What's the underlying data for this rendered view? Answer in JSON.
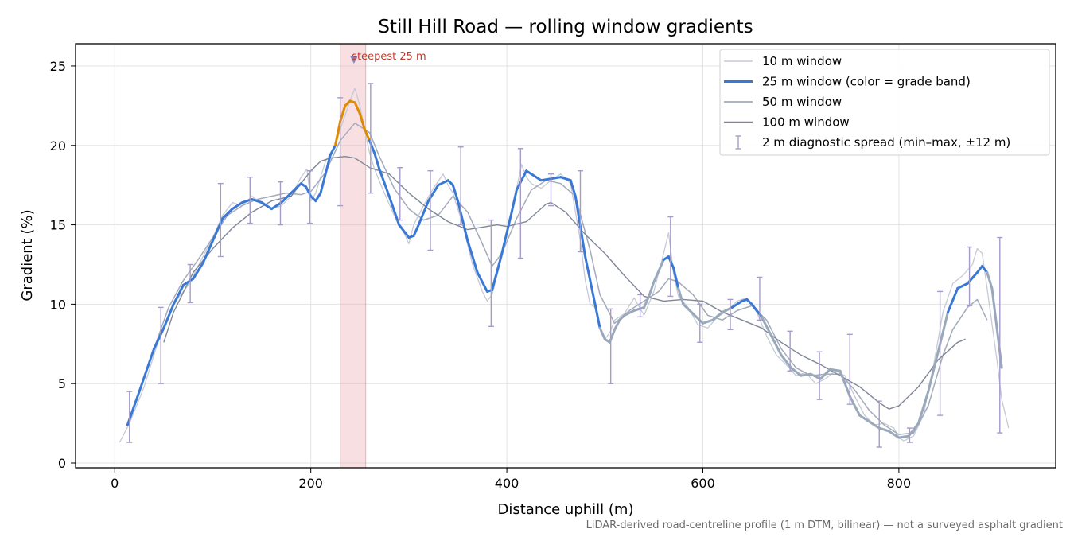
{
  "chart_data": {
    "type": "line",
    "title": "Still Hill Road — rolling window gradients",
    "xlabel": "Distance uphill (m)",
    "ylabel": "Gradient (%)",
    "xlim": [
      -40,
      960
    ],
    "ylim": [
      -0.3,
      26.4
    ],
    "x_ticks": [
      0,
      200,
      400,
      600,
      800
    ],
    "y_ticks": [
      0,
      5,
      10,
      15,
      20,
      25
    ],
    "grid": true,
    "legend_position": "top-right",
    "footnote": "LiDAR-derived road-centreline profile (1 m DTM, bilinear) — not a surveyed asphalt gradient",
    "highlight": {
      "label": "steepest 25 m",
      "x_start": 230,
      "x_end": 256,
      "peak_x": 244,
      "peak_y": 25.3
    },
    "grade_band_threshold": 20,
    "series": [
      {
        "name": "10 m window",
        "kind": "line",
        "color": "#c5cad6",
        "x": [
          5,
          15,
          30,
          45,
          60,
          75,
          90,
          100,
          110,
          120,
          130,
          140,
          150,
          160,
          170,
          180,
          190,
          196,
          200,
          205,
          215,
          225,
          230,
          240,
          245,
          250,
          255,
          260,
          265,
          275,
          285,
          295,
          300,
          305,
          315,
          325,
          335,
          340,
          345,
          355,
          365,
          375,
          380,
          385,
          395,
          405,
          415,
          420,
          425,
          435,
          445,
          455,
          465,
          475,
          480,
          485,
          490,
          495,
          500,
          505,
          510,
          520,
          530,
          540,
          550,
          560,
          565,
          570,
          575,
          585,
          595,
          605,
          615,
          625,
          635,
          645,
          655,
          665,
          675,
          685,
          695,
          705,
          715,
          725,
          735,
          745,
          755,
          765,
          775,
          785,
          795,
          800,
          805,
          815,
          825,
          835,
          845,
          855,
          865,
          875,
          880,
          885,
          890,
          900,
          905,
          912
        ],
        "y": [
          1.3,
          2.5,
          4.8,
          7.8,
          10.0,
          11.2,
          13.0,
          14.2,
          15.6,
          16.4,
          16.2,
          16.8,
          16.3,
          16.0,
          16.2,
          16.8,
          18.0,
          18.5,
          16.5,
          17.0,
          19.0,
          20.0,
          21.0,
          22.8,
          23.6,
          22.5,
          21.0,
          19.5,
          18.5,
          17.0,
          15.6,
          14.5,
          13.8,
          15.0,
          16.2,
          17.3,
          18.2,
          17.5,
          17.0,
          15.0,
          12.5,
          10.8,
          10.2,
          10.6,
          13.0,
          15.8,
          18.8,
          18.0,
          17.6,
          17.3,
          17.8,
          18.2,
          17.6,
          14.0,
          11.5,
          10.0,
          9.8,
          8.5,
          7.8,
          8.2,
          9.0,
          9.4,
          10.4,
          9.3,
          10.8,
          13.2,
          14.5,
          12.0,
          10.5,
          9.8,
          8.7,
          8.5,
          9.2,
          9.6,
          10.2,
          10.4,
          9.5,
          8.0,
          6.8,
          6.2,
          5.5,
          5.7,
          5.0,
          5.3,
          5.8,
          5.5,
          4.2,
          3.0,
          2.4,
          2.5,
          2.2,
          1.6,
          1.4,
          1.7,
          3.0,
          6.0,
          9.5,
          11.3,
          11.8,
          12.5,
          13.5,
          13.2,
          11.0,
          6.5,
          4.0,
          2.2
        ]
      },
      {
        "name": "25 m window (color = grade band)",
        "kind": "line",
        "color": "#3a78d6",
        "color_above_threshold": "#e08a00",
        "color_outside": "#9aa8bb",
        "x": [
          13,
          25,
          40,
          50,
          60,
          70,
          80,
          90,
          100,
          110,
          120,
          130,
          140,
          150,
          160,
          170,
          180,
          190,
          195,
          200,
          205,
          210,
          220,
          225,
          230,
          235,
          240,
          245,
          250,
          255,
          260,
          265,
          270,
          280,
          290,
          300,
          305,
          310,
          320,
          330,
          340,
          345,
          350,
          360,
          370,
          380,
          385,
          395,
          405,
          410,
          420,
          425,
          435,
          445,
          455,
          465,
          470,
          480,
          485,
          490,
          495,
          500,
          505,
          510,
          515,
          520,
          530,
          540,
          545,
          550,
          560,
          565,
          570,
          575,
          580,
          590,
          600,
          610,
          620,
          630,
          640,
          645,
          650,
          660,
          670,
          680,
          690,
          700,
          710,
          720,
          730,
          740,
          750,
          760,
          770,
          780,
          790,
          800,
          810,
          820,
          830,
          840,
          850,
          860,
          870,
          880,
          885,
          890,
          895,
          900,
          905
        ],
        "y": [
          2.4,
          4.5,
          7.2,
          8.5,
          10.0,
          11.2,
          11.6,
          12.6,
          14.0,
          15.4,
          16.0,
          16.4,
          16.6,
          16.4,
          16.0,
          16.4,
          17.0,
          17.6,
          17.4,
          16.8,
          16.5,
          17.0,
          19.4,
          20.0,
          21.5,
          22.5,
          22.8,
          22.7,
          22.0,
          21.0,
          20.3,
          19.5,
          18.5,
          16.8,
          15.0,
          14.2,
          14.3,
          15.0,
          16.5,
          17.5,
          17.8,
          17.5,
          16.5,
          14.0,
          12.0,
          10.8,
          10.9,
          13.2,
          15.8,
          17.2,
          18.4,
          18.2,
          17.8,
          17.9,
          18.0,
          17.8,
          16.8,
          13.0,
          11.5,
          10.0,
          8.5,
          7.8,
          7.6,
          8.4,
          9.0,
          9.3,
          9.6,
          9.8,
          10.5,
          11.4,
          12.8,
          13.0,
          12.3,
          11.0,
          10.0,
          9.4,
          8.8,
          9.0,
          9.5,
          9.8,
          10.2,
          10.3,
          10.0,
          9.2,
          8.0,
          6.8,
          6.0,
          5.5,
          5.6,
          5.3,
          5.9,
          5.8,
          4.2,
          3.0,
          2.6,
          2.2,
          2.0,
          1.6,
          1.7,
          2.5,
          4.5,
          7.0,
          9.5,
          11.0,
          11.3,
          12.0,
          12.4,
          12.0,
          11.0,
          8.5,
          6.0
        ]
      },
      {
        "name": "50 m window",
        "kind": "line",
        "color": "#a3aab9",
        "x": [
          25,
          40,
          55,
          70,
          85,
          100,
          115,
          130,
          145,
          160,
          175,
          190,
          200,
          215,
          230,
          245,
          260,
          270,
          285,
          300,
          315,
          330,
          345,
          360,
          375,
          385,
          395,
          410,
          425,
          440,
          455,
          470,
          485,
          495,
          510,
          525,
          540,
          555,
          565,
          575,
          590,
          605,
          620,
          635,
          650,
          665,
          680,
          695,
          710,
          725,
          740,
          755,
          770,
          785,
          800,
          815,
          830,
          845,
          855,
          870,
          880,
          890
        ],
        "y": [
          4.5,
          7.2,
          9.8,
          11.5,
          12.8,
          14.2,
          15.6,
          16.2,
          16.6,
          16.8,
          17.0,
          16.9,
          17.1,
          18.3,
          20.3,
          21.4,
          20.8,
          19.3,
          17.3,
          16.0,
          15.3,
          15.6,
          16.8,
          15.8,
          13.8,
          12.4,
          13.2,
          15.4,
          17.2,
          17.8,
          17.6,
          16.8,
          13.4,
          10.6,
          8.8,
          9.6,
          10.2,
          10.8,
          11.6,
          11.4,
          10.6,
          9.3,
          9.0,
          9.6,
          9.9,
          9.0,
          7.2,
          6.0,
          5.5,
          5.6,
          5.6,
          4.6,
          3.3,
          2.4,
          1.8,
          1.9,
          3.6,
          6.8,
          8.4,
          9.8,
          10.3,
          9.0
        ]
      },
      {
        "name": "100 m window",
        "kind": "line",
        "color": "#7f8697",
        "x": [
          50,
          60,
          80,
          100,
          120,
          140,
          160,
          180,
          200,
          210,
          220,
          235,
          245,
          260,
          280,
          300,
          320,
          340,
          360,
          380,
          390,
          400,
          420,
          440,
          445,
          460,
          480,
          500,
          520,
          540,
          560,
          580,
          600,
          620,
          640,
          660,
          680,
          700,
          720,
          740,
          760,
          780,
          790,
          800,
          820,
          840,
          860,
          868
        ],
        "y": [
          7.6,
          9.5,
          12.0,
          13.5,
          14.8,
          15.8,
          16.5,
          16.8,
          18.4,
          19.0,
          19.2,
          19.3,
          19.2,
          18.6,
          18.2,
          17.0,
          16.0,
          15.2,
          14.7,
          14.9,
          15.0,
          14.9,
          15.2,
          16.3,
          16.4,
          15.8,
          14.4,
          13.2,
          11.8,
          10.5,
          10.2,
          10.3,
          10.2,
          9.5,
          9.0,
          8.5,
          7.6,
          6.8,
          6.2,
          5.5,
          4.8,
          3.8,
          3.4,
          3.6,
          4.8,
          6.5,
          7.6,
          7.8
        ]
      },
      {
        "name": "2 m diagnostic spread (min–max, ±12 m)",
        "kind": "errorbar",
        "color": "#a59cc8",
        "points": [
          {
            "x": 15,
            "lo": 1.3,
            "hi": 4.5
          },
          {
            "x": 47,
            "lo": 5.0,
            "hi": 9.8
          },
          {
            "x": 77,
            "lo": 10.1,
            "hi": 12.5
          },
          {
            "x": 108,
            "lo": 13.0,
            "hi": 17.6
          },
          {
            "x": 138,
            "lo": 15.1,
            "hi": 18.0
          },
          {
            "x": 169,
            "lo": 15.0,
            "hi": 17.7
          },
          {
            "x": 199,
            "lo": 15.1,
            "hi": 18.4
          },
          {
            "x": 230,
            "lo": 16.2,
            "hi": 23.0
          },
          {
            "x": 261,
            "lo": 17.0,
            "hi": 23.9
          },
          {
            "x": 291,
            "lo": 15.3,
            "hi": 18.6
          },
          {
            "x": 322,
            "lo": 13.4,
            "hi": 18.4
          },
          {
            "x": 353,
            "lo": 15.0,
            "hi": 19.9
          },
          {
            "x": 384,
            "lo": 8.6,
            "hi": 15.3
          },
          {
            "x": 414,
            "lo": 12.9,
            "hi": 19.8
          },
          {
            "x": 445,
            "lo": 16.2,
            "hi": 18.2
          },
          {
            "x": 475,
            "lo": 13.3,
            "hi": 18.4
          },
          {
            "x": 506,
            "lo": 5.0,
            "hi": 9.7
          },
          {
            "x": 536,
            "lo": 9.2,
            "hi": 10.6
          },
          {
            "x": 567,
            "lo": 10.5,
            "hi": 15.5
          },
          {
            "x": 597,
            "lo": 7.6,
            "hi": 10.0
          },
          {
            "x": 628,
            "lo": 8.4,
            "hi": 10.3
          },
          {
            "x": 658,
            "lo": 9.0,
            "hi": 11.7
          },
          {
            "x": 689,
            "lo": 5.8,
            "hi": 8.3
          },
          {
            "x": 719,
            "lo": 4.0,
            "hi": 7.0
          },
          {
            "x": 750,
            "lo": 3.7,
            "hi": 8.1
          },
          {
            "x": 780,
            "lo": 1.0,
            "hi": 3.9
          },
          {
            "x": 811,
            "lo": 1.3,
            "hi": 2.2
          },
          {
            "x": 842,
            "lo": 3.0,
            "hi": 10.8
          },
          {
            "x": 872,
            "lo": 9.9,
            "hi": 13.6
          },
          {
            "x": 903,
            "lo": 1.9,
            "hi": 14.2
          }
        ]
      }
    ]
  }
}
